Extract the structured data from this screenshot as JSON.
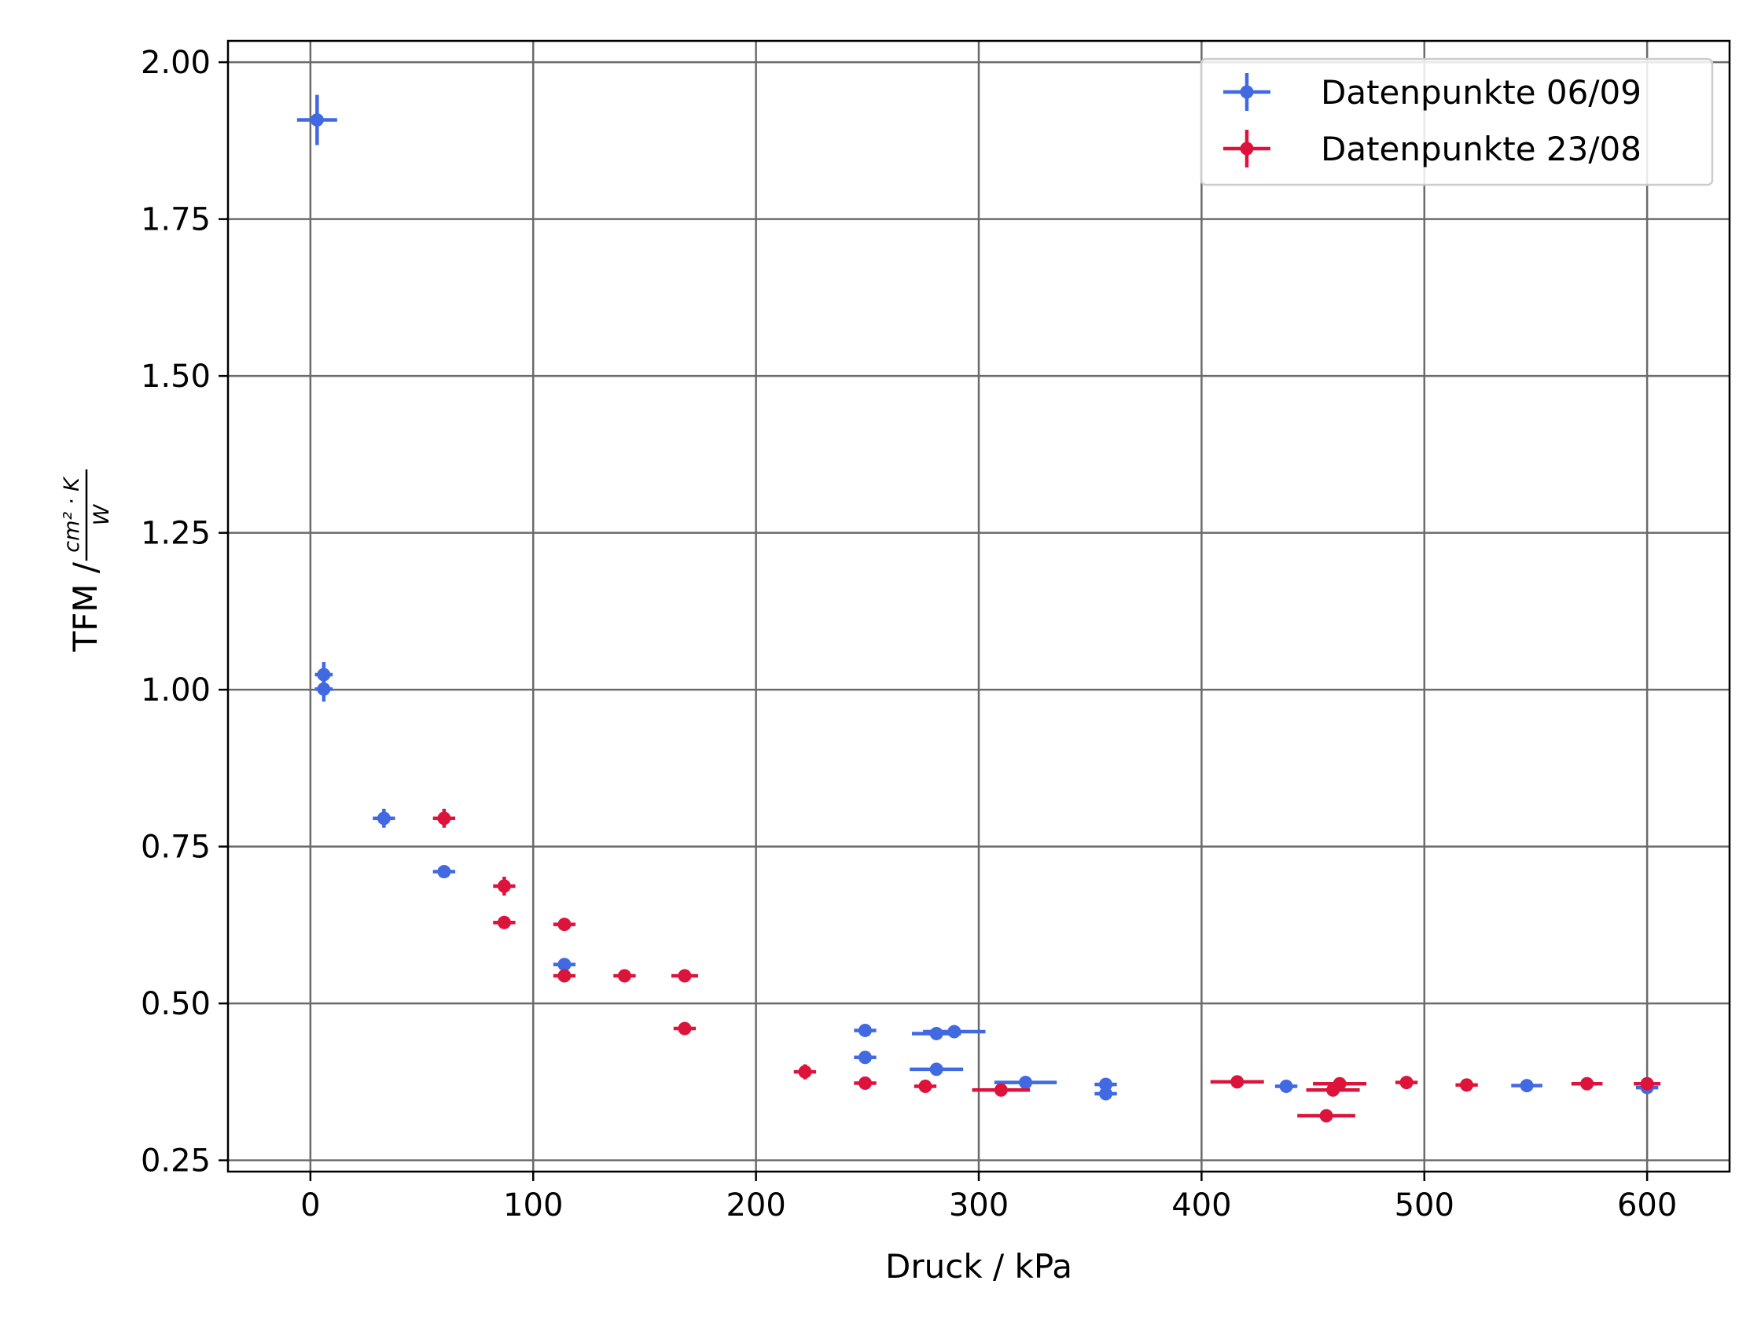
{
  "chart_data": {
    "type": "scatter",
    "title": "",
    "xlabel": "Druck / kPa",
    "ylabel": "TFM /",
    "ylabel_unit_numerator": "cm² · K",
    "ylabel_unit_denominator": "W",
    "xlim": [
      -37,
      637
    ],
    "ylim": [
      0.232,
      2.034
    ],
    "x_ticks": [
      0,
      100,
      200,
      300,
      400,
      500,
      600
    ],
    "x_tick_labels": [
      "0",
      "100",
      "200",
      "300",
      "400",
      "500",
      "600"
    ],
    "y_ticks": [
      0.25,
      0.5,
      0.75,
      1.0,
      1.25,
      1.5,
      1.75,
      2.0
    ],
    "y_tick_labels": [
      "0.25",
      "0.50",
      "0.75",
      "1.00",
      "1.25",
      "1.50",
      "1.75",
      "2.00"
    ],
    "grid": true,
    "legend_position": "top-right",
    "series": [
      {
        "name": "Datenpunkte 06/09",
        "color": "#4169e1",
        "points": [
          {
            "x": 3,
            "y": 1.908,
            "xerr": 9,
            "yerr": 0.04
          },
          {
            "x": 6,
            "y": 1.024,
            "xerr": 4,
            "yerr": 0.02
          },
          {
            "x": 6,
            "y": 1.001,
            "xerr": 4,
            "yerr": 0.02
          },
          {
            "x": 33,
            "y": 0.795,
            "xerr": 5,
            "yerr": 0.015
          },
          {
            "x": 60,
            "y": 0.71,
            "xerr": 5,
            "yerr": 0.01
          },
          {
            "x": 114,
            "y": 0.562,
            "xerr": 5,
            "yerr": 0.008
          },
          {
            "x": 249,
            "y": 0.457,
            "xerr": 5,
            "yerr": 0.005
          },
          {
            "x": 249,
            "y": 0.414,
            "xerr": 5,
            "yerr": 0.005
          },
          {
            "x": 281,
            "y": 0.452,
            "xerr": 11,
            "yerr": 0.005
          },
          {
            "x": 289,
            "y": 0.455,
            "xerr": 14,
            "yerr": 0.005
          },
          {
            "x": 281,
            "y": 0.395,
            "xerr": 12,
            "yerr": 0.005
          },
          {
            "x": 321,
            "y": 0.374,
            "xerr": 14,
            "yerr": 0.005
          },
          {
            "x": 357,
            "y": 0.371,
            "xerr": 5,
            "yerr": 0.005
          },
          {
            "x": 357,
            "y": 0.356,
            "xerr": 5,
            "yerr": 0.005
          },
          {
            "x": 438,
            "y": 0.368,
            "xerr": 5,
            "yerr": 0.005
          },
          {
            "x": 546,
            "y": 0.369,
            "xerr": 7,
            "yerr": 0.005
          },
          {
            "x": 600,
            "y": 0.366,
            "xerr": 5,
            "yerr": 0.005
          }
        ]
      },
      {
        "name": "Datenpunkte 23/08",
        "color": "#dc143c",
        "points": [
          {
            "x": 60,
            "y": 0.795,
            "xerr": 5,
            "yerr": 0.015
          },
          {
            "x": 87,
            "y": 0.687,
            "xerr": 5,
            "yerr": 0.015
          },
          {
            "x": 87,
            "y": 0.629,
            "xerr": 5,
            "yerr": 0.008
          },
          {
            "x": 114,
            "y": 0.626,
            "xerr": 5,
            "yerr": 0.008
          },
          {
            "x": 114,
            "y": 0.544,
            "xerr": 5,
            "yerr": 0.008
          },
          {
            "x": 141,
            "y": 0.544,
            "xerr": 5,
            "yerr": 0.005
          },
          {
            "x": 168,
            "y": 0.544,
            "xerr": 6,
            "yerr": 0.005
          },
          {
            "x": 168,
            "y": 0.46,
            "xerr": 5,
            "yerr": 0.005
          },
          {
            "x": 222,
            "y": 0.391,
            "xerr": 5,
            "yerr": 0.012
          },
          {
            "x": 249,
            "y": 0.373,
            "xerr": 5,
            "yerr": 0.005
          },
          {
            "x": 276,
            "y": 0.368,
            "xerr": 5,
            "yerr": 0.005
          },
          {
            "x": 310,
            "y": 0.362,
            "xerr": 13,
            "yerr": 0.005
          },
          {
            "x": 416,
            "y": 0.375,
            "xerr": 12,
            "yerr": 0.005
          },
          {
            "x": 456,
            "y": 0.321,
            "xerr": 13,
            "yerr": 0.005
          },
          {
            "x": 459,
            "y": 0.362,
            "xerr": 12,
            "yerr": 0.005
          },
          {
            "x": 462,
            "y": 0.372,
            "xerr": 12,
            "yerr": 0.005
          },
          {
            "x": 492,
            "y": 0.374,
            "xerr": 5,
            "yerr": 0.005
          },
          {
            "x": 519,
            "y": 0.37,
            "xerr": 5,
            "yerr": 0.005
          },
          {
            "x": 573,
            "y": 0.372,
            "xerr": 7,
            "yerr": 0.008
          },
          {
            "x": 600,
            "y": 0.372,
            "xerr": 6,
            "yerr": 0.005
          }
        ]
      }
    ]
  }
}
